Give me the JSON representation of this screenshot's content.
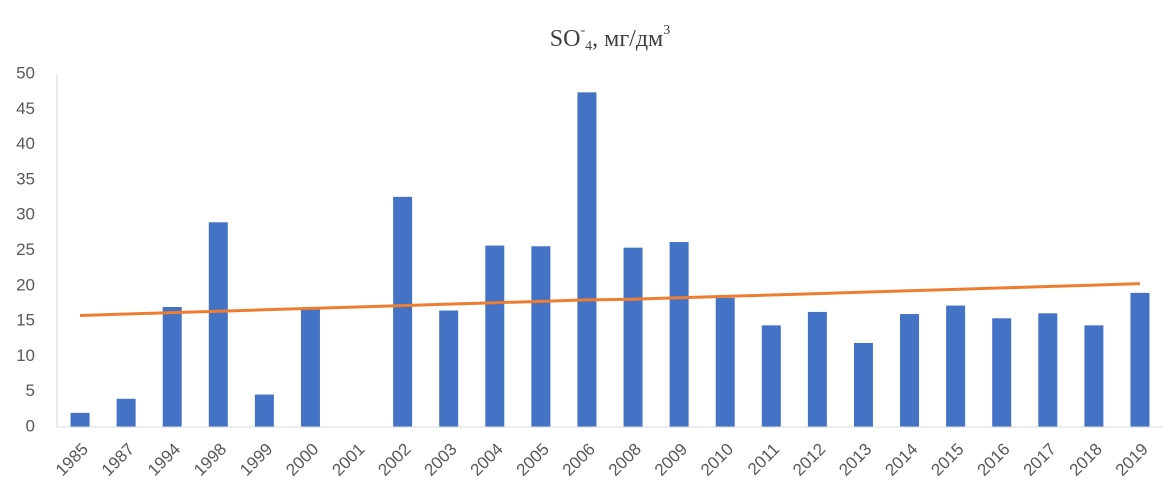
{
  "chart_data": {
    "type": "bar",
    "title": [
      "SO",
      "-",
      "4",
      ", мг/дм",
      "3"
    ],
    "categories": [
      "1985",
      "1987",
      "1994",
      "1998",
      "1999",
      "2000",
      "2001",
      "2002",
      "2003",
      "2004",
      "2005",
      "2006",
      "2008",
      "2009",
      "2010",
      "2011",
      "2012",
      "2013",
      "2014",
      "2015",
      "2016",
      "2017",
      "2018",
      "2019"
    ],
    "values": [
      2.0,
      4.0,
      17.0,
      29.0,
      4.6,
      16.7,
      null,
      32.6,
      16.5,
      25.7,
      25.6,
      47.4,
      25.4,
      26.2,
      18.3,
      14.4,
      16.3,
      11.9,
      16.0,
      17.2,
      15.4,
      16.1,
      14.4,
      19.0
    ],
    "color": "#4472c4",
    "trendline": {
      "color": "#ed7d31",
      "values": [
        15.8,
        16.0,
        16.2,
        16.4,
        16.6,
        16.8,
        17.0,
        17.2,
        17.4,
        17.6,
        17.8,
        18.0,
        18.1,
        18.3,
        18.5,
        18.7,
        18.9,
        19.1,
        19.3,
        19.5,
        19.7,
        19.9,
        20.1,
        20.3
      ]
    },
    "ylim": [
      0,
      50
    ],
    "yticks": [
      0,
      5,
      10,
      15,
      20,
      25,
      30,
      35,
      40,
      45,
      50
    ],
    "grid": false
  }
}
